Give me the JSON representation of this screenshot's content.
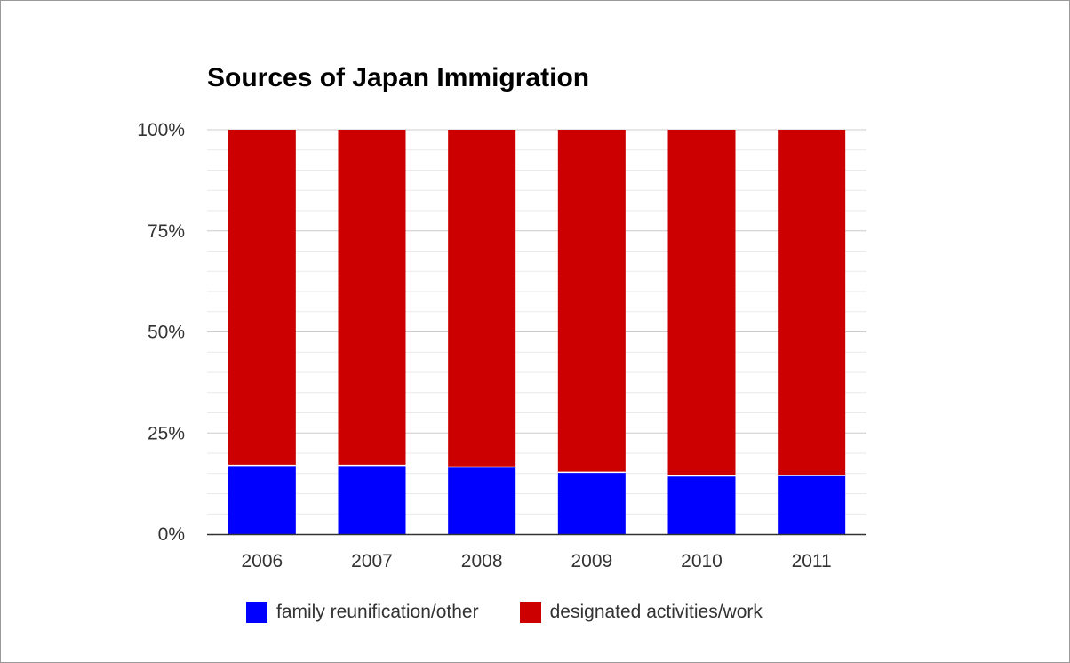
{
  "chart_data": {
    "type": "bar",
    "stacked": true,
    "title": "Sources of Japan Immigration",
    "xlabel": "",
    "ylabel": "",
    "categories": [
      "2006",
      "2007",
      "2008",
      "2009",
      "2010",
      "2011"
    ],
    "series": [
      {
        "name": "family reunification/other",
        "color": "#0000ff",
        "values": [
          17.0,
          17.0,
          16.6,
          15.3,
          14.4,
          14.5
        ]
      },
      {
        "name": "designated activities/work",
        "color": "#cc0000",
        "values": [
          83.0,
          83.0,
          83.4,
          84.7,
          85.6,
          85.5
        ]
      }
    ],
    "ylim": [
      0,
      100
    ],
    "yticks": [
      "0%",
      "25%",
      "50%",
      "75%",
      "100%"
    ],
    "grid": true,
    "legend_position": "bottom"
  }
}
